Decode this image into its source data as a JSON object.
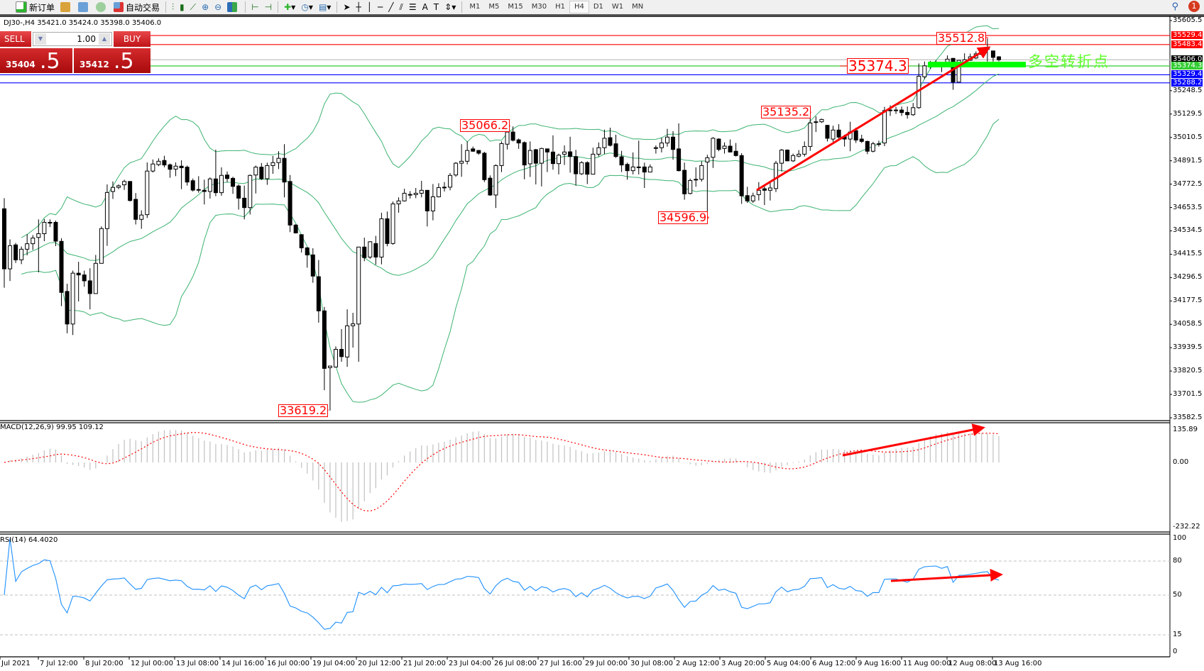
{
  "toolbar": {
    "new_order": "新订单",
    "auto_trading": "自动交易",
    "icons": [
      "new-order-icon",
      "market-watch-icon",
      "navigator-icon",
      "signal-icon",
      "auto-trading-icon",
      "bar-chart-icon",
      "candlestick-icon",
      "line-chart-icon",
      "zoom-in-icon",
      "zoom-out-icon",
      "tile-windows-icon",
      "autoscroll-icon",
      "chart-shift-icon",
      "indicators-icon",
      "periods-icon",
      "templates-icon",
      "cursor-icon",
      "crosshair-icon",
      "vertical-line-icon",
      "horizontal-line-icon",
      "trendline-icon",
      "equidistant-channel-icon",
      "fibonacci-icon",
      "text-icon",
      "text-label-icon",
      "arrows-icon"
    ],
    "timeframes": [
      "M1",
      "M5",
      "M15",
      "M30",
      "H1",
      "H4",
      "D1",
      "W1",
      "MN"
    ],
    "active_timeframe": "H4",
    "notification_count": "1"
  },
  "chart_header": "DJ30-,H4  35421.0 35424.0 35398.0 35406.0",
  "trade_panel": {
    "sell_label": "SELL",
    "buy_label": "BUY",
    "lot": "1.00",
    "sell_main": "35404",
    "sell_big": ".5",
    "buy_main": "35412",
    "buy_big": ".5"
  },
  "annotations": {
    "high1": "35512.8",
    "level": "35374.3",
    "p1": "35135.2",
    "p2": "35066.2",
    "p3": "34596.9",
    "low1": "33619.2",
    "turn_point": "多空转折点"
  },
  "colors": {
    "bull_body": "#ffffff",
    "bear_body": "#000000",
    "bollinger": "#3cb371",
    "macd_hist": "#c0c0c0",
    "macd_signal": "#ff0000",
    "rsi": "#1e90ff",
    "annotation": "#ff0000",
    "turn_bar": "#00ff00"
  },
  "chart_data": {
    "type": "candlestick",
    "symbol": "DJ30-",
    "timeframe": "H4",
    "price_axis": {
      "min": 33582.5,
      "max": 35605.5,
      "ticks": [
        "35605.5",
        "35248.5",
        "35129.5",
        "35010.5",
        "34891.5",
        "34772.5",
        "34653.5",
        "34534.5",
        "34415.5",
        "34296.5",
        "34177.5",
        "34058.5",
        "33939.5",
        "33820.5",
        "33701.5",
        "33582.5"
      ]
    },
    "levels": [
      {
        "price": "35529.4",
        "color": "#ff0000"
      },
      {
        "price": "35483.4",
        "color": "#ff0000"
      },
      {
        "price": "35406.0",
        "color": "#000000",
        "line": "#c0c0c0"
      },
      {
        "price": "35374.3",
        "color": "#32cd32"
      },
      {
        "price": "35329.4",
        "color": "#0000ff"
      },
      {
        "price": "35288.2",
        "color": "#0000ff"
      }
    ],
    "x_labels": [
      "Jul 2021",
      "7 Jul 12:00",
      "8 Jul 20:00",
      "12 Jul 00:00",
      "13 Jul 08:00",
      "14 Jul 16:00",
      "16 Jul 00:00",
      "19 Jul 04:00",
      "20 Jul 12:00",
      "21 Jul 20:00",
      "23 Jul 04:00",
      "26 Jul 08:00",
      "27 Jul 16:00",
      "29 Jul 00:00",
      "30 Jul 08:00",
      "2 Aug 12:00",
      "3 Aug 20:00",
      "5 Aug 04:00",
      "6 Aug 12:00",
      "9 Aug 16:00",
      "11 Aug 00:00",
      "12 Aug 08:00",
      "13 Aug 16:00"
    ],
    "ohlc_fields": [
      "open",
      "high",
      "low",
      "close"
    ],
    "candles": [
      [
        34647,
        34701,
        34245,
        34341
      ],
      [
        34341,
        34491,
        34279,
        34459
      ],
      [
        34463,
        34473,
        34371,
        34387
      ],
      [
        34387,
        34455,
        34365,
        34441
      ],
      [
        34441,
        34518,
        34410,
        34469
      ],
      [
        34469,
        34513,
        34437,
        34498
      ],
      [
        34501,
        34593,
        34323,
        34520
      ],
      [
        34520,
        34595,
        34482,
        34578
      ],
      [
        34578,
        34593,
        34554,
        34574
      ],
      [
        34578,
        34587,
        34457,
        34482
      ],
      [
        34481,
        34497,
        34151,
        34221
      ],
      [
        34226,
        34265,
        34013,
        34060
      ],
      [
        34060,
        34332,
        34004,
        34319
      ],
      [
        34319,
        34377,
        34175,
        34310
      ],
      [
        34310,
        34332,
        34250,
        34280
      ],
      [
        34280,
        34344,
        34135,
        34215
      ],
      [
        34215,
        34412,
        34215,
        34369
      ],
      [
        34369,
        34557,
        34369,
        34546
      ],
      [
        34546,
        34771,
        34458,
        34730
      ],
      [
        34735,
        34786,
        34697,
        34756
      ],
      [
        34756,
        34771,
        34747,
        34764
      ],
      [
        34769,
        34795,
        34743,
        34786
      ],
      [
        34786,
        34788,
        34684,
        34689
      ],
      [
        34695,
        34727,
        34567,
        34593
      ],
      [
        34593,
        34639,
        34545,
        34615
      ],
      [
        34617,
        34883,
        34600,
        34839
      ],
      [
        34839,
        34898,
        34832,
        34875
      ],
      [
        34872,
        34904,
        34864,
        34889
      ],
      [
        34893,
        34917,
        34858,
        34870
      ],
      [
        34871,
        34877,
        34805,
        34848
      ],
      [
        34849,
        34883,
        34813,
        34864
      ],
      [
        34864,
        34894,
        34747,
        34856
      ],
      [
        34859,
        34867,
        34765,
        34783
      ],
      [
        34790,
        34801,
        34735,
        34742
      ],
      [
        34745,
        34813,
        34729,
        34744
      ],
      [
        34741,
        34795,
        34669,
        34735
      ],
      [
        34735,
        34807,
        34699,
        34799
      ],
      [
        34799,
        34948,
        34711,
        34729
      ],
      [
        34729,
        34858,
        34713,
        34817
      ],
      [
        34819,
        34837,
        34783,
        34801
      ],
      [
        34802,
        34810,
        34723,
        34761
      ],
      [
        34763,
        34771,
        34643,
        34701
      ],
      [
        34701,
        34765,
        34593,
        34653
      ],
      [
        34653,
        34822,
        34618,
        34817
      ],
      [
        34819,
        34867,
        34725,
        34859
      ],
      [
        34859,
        34880,
        34793,
        34800
      ],
      [
        34800,
        34882,
        34769,
        34867
      ],
      [
        34867,
        34916,
        34825,
        34882
      ],
      [
        34882,
        34940,
        34849,
        34904
      ],
      [
        34904,
        34976,
        34705,
        34783
      ],
      [
        34786,
        34819,
        34528,
        34564
      ],
      [
        34564,
        34569,
        34521,
        34524
      ],
      [
        34515,
        34518,
        34424,
        34448
      ],
      [
        34448,
        34452,
        34347,
        34412
      ],
      [
        34412,
        34446,
        34270,
        34304
      ],
      [
        34301,
        34386,
        34067,
        34127
      ],
      [
        34127,
        34147,
        33723,
        33834
      ],
      [
        33838,
        33846,
        33619.2,
        33846
      ],
      [
        33841,
        33946,
        33838,
        33931
      ],
      [
        33931,
        34034,
        33868,
        33894
      ],
      [
        33892,
        34135,
        33842,
        34051
      ],
      [
        34051,
        34117,
        33940,
        34061
      ],
      [
        34060,
        34452,
        33868,
        34452
      ],
      [
        34452,
        34500,
        34380,
        34398
      ],
      [
        34401,
        34482,
        34392,
        34479
      ],
      [
        34470,
        34509,
        34362,
        34401
      ],
      [
        34401,
        34627,
        34364,
        34596
      ],
      [
        34596,
        34633,
        34456,
        34470
      ],
      [
        34470,
        34684,
        34464,
        34672
      ],
      [
        34672,
        34705,
        34627,
        34687
      ],
      [
        34687,
        34749,
        34684,
        34726
      ],
      [
        34720,
        34737,
        34699,
        34720
      ],
      [
        34719,
        34753,
        34701,
        34726
      ],
      [
        34726,
        34789,
        34705,
        34741
      ],
      [
        34741,
        34741,
        34557,
        34636
      ],
      [
        34636,
        34773,
        34588,
        34708
      ],
      [
        34708,
        34777,
        34705,
        34755
      ],
      [
        34757,
        34783,
        34735,
        34757
      ],
      [
        34757,
        34829,
        34741,
        34817
      ],
      [
        34819,
        34885,
        34810,
        34879
      ],
      [
        34879,
        34976,
        34810,
        34889
      ],
      [
        34889,
        34990,
        34873,
        34944
      ],
      [
        34952,
        34964,
        34937,
        34940
      ],
      [
        34944,
        34946,
        34922,
        34930
      ],
      [
        34930,
        34937,
        34783,
        34795
      ],
      [
        34803,
        34817,
        34713,
        34717
      ],
      [
        34717,
        34873,
        34651,
        34867
      ],
      [
        34867,
        34990,
        34834,
        34979
      ],
      [
        34976,
        35048,
        34949,
        35038
      ],
      [
        35038,
        35066.2,
        34990,
        34996
      ],
      [
        34998,
        35005,
        34952,
        34982
      ],
      [
        34984,
        34990,
        34797,
        34870
      ],
      [
        34876,
        34990,
        34809,
        34944
      ],
      [
        34948,
        34952,
        34771,
        34879
      ],
      [
        34879,
        34958,
        34761,
        34954
      ],
      [
        34952,
        34954,
        34834,
        34936
      ],
      [
        34936,
        35021,
        34846,
        34877
      ],
      [
        34877,
        34928,
        34822,
        34920
      ],
      [
        34925,
        34970,
        34870,
        34936
      ],
      [
        34937,
        35014,
        34831,
        34913
      ],
      [
        34913,
        34947,
        34765,
        34825
      ],
      [
        34825,
        34889,
        34819,
        34882
      ],
      [
        34882,
        34889,
        34773,
        34823
      ],
      [
        34823,
        34958,
        34823,
        34925
      ],
      [
        34925,
        34985,
        34913,
        34958
      ],
      [
        34958,
        35050,
        34925,
        35006
      ],
      [
        35009,
        35060,
        34964,
        34970
      ],
      [
        34978,
        35024,
        34906,
        34913
      ],
      [
        34912,
        34942,
        34834,
        34870
      ],
      [
        34873,
        34882,
        34795,
        34841
      ],
      [
        34841,
        34934,
        34822,
        34860
      ],
      [
        34860,
        34994,
        34822,
        34860
      ],
      [
        34860,
        34882,
        34753,
        34834
      ],
      [
        34834,
        34873,
        34834,
        34860
      ],
      [
        34958,
        34970,
        34928,
        34958
      ],
      [
        34958,
        35009,
        34934,
        34982
      ],
      [
        34982,
        35054,
        34964,
        35012
      ],
      [
        35012,
        35042,
        34897,
        34949
      ],
      [
        34952,
        35082,
        34837,
        34841
      ],
      [
        34843,
        34882,
        34693,
        34723
      ],
      [
        34725,
        34801,
        34720,
        34791
      ],
      [
        34797,
        34858,
        34759,
        34797
      ],
      [
        34797,
        34889,
        34785,
        34867
      ],
      [
        34885,
        34922,
        34596.9,
        34907
      ],
      [
        34909,
        35012,
        34855,
        35006
      ],
      [
        35002,
        35006,
        34940,
        34949
      ],
      [
        34954,
        34985,
        34928,
        34966
      ],
      [
        34966,
        35000,
        34934,
        34936
      ],
      [
        34940,
        34982,
        34913,
        34918
      ],
      [
        34918,
        34930,
        34672,
        34713
      ],
      [
        34714,
        34759,
        34677,
        34687
      ],
      [
        34687,
        34729,
        34677,
        34713
      ],
      [
        34719,
        34783,
        34689,
        34741
      ],
      [
        34749,
        34771,
        34666,
        34741
      ],
      [
        34741,
        34789,
        34689,
        34753
      ],
      [
        34750,
        34891,
        34732,
        34879
      ],
      [
        34879,
        34952,
        34837,
        34946
      ],
      [
        34946,
        34949,
        34889,
        34891
      ],
      [
        34891,
        34928,
        34885,
        34918
      ],
      [
        34915,
        34946,
        34909,
        34925
      ],
      [
        34925,
        34990,
        34913,
        34964
      ],
      [
        34964,
        35135.2,
        34942,
        35084
      ],
      [
        35090,
        35118,
        35038,
        35090
      ],
      [
        35090,
        35106,
        35084,
        35102
      ],
      [
        35072,
        35074,
        34990,
        35006
      ],
      [
        35002,
        35070,
        34988,
        35048
      ],
      [
        35048,
        35078,
        35000,
        35012
      ],
      [
        35014,
        35024,
        34964,
        35002
      ],
      [
        35002,
        35090,
        34940,
        35038
      ],
      [
        35045,
        35060,
        34982,
        34997
      ],
      [
        35002,
        35024,
        34982,
        34990
      ],
      [
        34990,
        34994,
        34925,
        34940
      ],
      [
        34940,
        34988,
        34934,
        34978
      ],
      [
        34978,
        34994,
        34964,
        34978
      ],
      [
        34982,
        35166,
        34966,
        35147
      ],
      [
        35150,
        35174,
        35120,
        35150
      ],
      [
        35150,
        35166,
        35130,
        35150
      ],
      [
        35150,
        35168,
        35120,
        35137
      ],
      [
        35138,
        35168,
        35106,
        35126
      ],
      [
        35126,
        35186,
        35120,
        35162
      ],
      [
        35162,
        35387,
        35156,
        35322
      ],
      [
        35319,
        35397,
        35307,
        35375
      ],
      [
        35375,
        35400,
        35360,
        35385
      ],
      [
        35390,
        35403,
        35380,
        35390
      ],
      [
        35380,
        35385,
        35343,
        35375
      ],
      [
        35391,
        35428,
        35375,
        35409
      ],
      [
        35413,
        35415,
        35253,
        35292
      ],
      [
        35292,
        35403,
        35290,
        35403
      ],
      [
        35394,
        35439,
        35391,
        35406
      ],
      [
        35403,
        35437,
        35400,
        35421
      ],
      [
        35415,
        35448,
        35410,
        35436
      ],
      [
        35433,
        35470,
        35430,
        35454
      ],
      [
        35463,
        35512.8,
        35397,
        35463
      ],
      [
        35451,
        35451,
        35397,
        35418
      ],
      [
        35421,
        35424,
        35398,
        35406
      ]
    ],
    "indicators": [
      {
        "name": "Bollinger Bands",
        "period": 20,
        "deviation": 2
      },
      {
        "name": "MACD",
        "label": "MACD(12,26,9) 99.95 109.12",
        "axis": {
          "max": 135.89,
          "min": -232.22,
          "ticks": [
            "135.89",
            "0.00",
            "-232.22"
          ]
        }
      },
      {
        "name": "RSI",
        "label": "RSI(14) 64.4020",
        "axis": {
          "min": 0,
          "max": 100,
          "ticks": [
            "100",
            "80",
            "50",
            "15",
            "0"
          ],
          "levels": [
            80,
            50,
            15
          ]
        }
      }
    ]
  }
}
